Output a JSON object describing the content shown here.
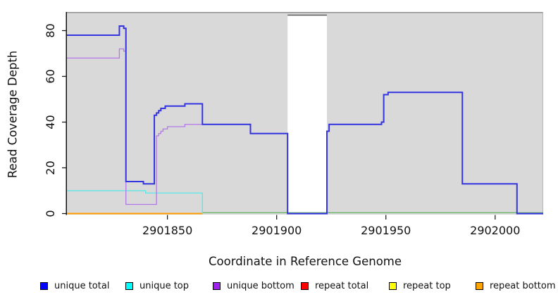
{
  "figure": {
    "xlabel": "Coordinate in Reference Genome",
    "ylabel": "Read Coverage Depth"
  },
  "chart_data": {
    "type": "line",
    "subtype": "step-after-coverage-plot",
    "title": "",
    "xlabel": "Coordinate in Reference Genome",
    "ylabel": "Read Coverage Depth",
    "xlim": [
      2901804,
      2902022
    ],
    "ylim": [
      0,
      88
    ],
    "xticks": [
      2901850,
      2901900,
      2901950,
      2902000
    ],
    "yticks": [
      0,
      20,
      40,
      60,
      80
    ],
    "panel_background": "#d9d9d9",
    "grid": "off",
    "gap_region": {
      "x_start": 2901905,
      "x_end": 2901923,
      "color": "#ffffff",
      "note": "white no-data band, line drops to 0"
    },
    "series": [
      {
        "name": "repeat total",
        "color": "#ff0000",
        "width": 2,
        "points": [
          [
            2901804,
            0
          ],
          [
            2901866,
            0
          ]
        ]
      },
      {
        "name": "repeat top",
        "color": "#ffff00",
        "width": 2,
        "points": [
          [
            2901804,
            0
          ],
          [
            2901866,
            0
          ]
        ]
      },
      {
        "name": "repeat bottom",
        "color": "#ff9d00",
        "width": 2,
        "points": [
          [
            2901804,
            0
          ],
          [
            2901866,
            0
          ]
        ]
      },
      {
        "name": "baseline",
        "color": "#6cb56c",
        "width": 1.3,
        "in_legend": false,
        "points": [
          [
            2901866,
            0
          ],
          [
            2902022,
            0
          ]
        ]
      },
      {
        "name": "unique top",
        "color": "#55e8e8",
        "width": 1.3,
        "points": [
          [
            2901804,
            10
          ],
          [
            2901840,
            9
          ],
          [
            2901866,
            0
          ]
        ]
      },
      {
        "name": "unique bottom",
        "color": "#b277e8",
        "width": 1.3,
        "points": [
          [
            2901804,
            68
          ],
          [
            2901828,
            72
          ],
          [
            2901830,
            71
          ],
          [
            2901831,
            4
          ],
          [
            2901845,
            34
          ],
          [
            2901846,
            35
          ],
          [
            2901847,
            36
          ],
          [
            2901848,
            37
          ],
          [
            2901850,
            38
          ],
          [
            2901858,
            39
          ],
          [
            2901888,
            35
          ],
          [
            2901905,
            0
          ],
          [
            2901923,
            36
          ],
          [
            2901924,
            39
          ],
          [
            2901948,
            40
          ],
          [
            2901949,
            52
          ],
          [
            2901951,
            53
          ],
          [
            2901985,
            13
          ],
          [
            2902010,
            0
          ],
          [
            2902022,
            0
          ]
        ]
      },
      {
        "name": "unique total",
        "color": "#3333e0",
        "width": 2,
        "points": [
          [
            2901804,
            78
          ],
          [
            2901828,
            82
          ],
          [
            2901830,
            81
          ],
          [
            2901831,
            14
          ],
          [
            2901839,
            13
          ],
          [
            2901844,
            43
          ],
          [
            2901845,
            44
          ],
          [
            2901846,
            45
          ],
          [
            2901847,
            46
          ],
          [
            2901849,
            47
          ],
          [
            2901858,
            48
          ],
          [
            2901866,
            39
          ],
          [
            2901888,
            35
          ],
          [
            2901905,
            0
          ],
          [
            2901923,
            36
          ],
          [
            2901924,
            39
          ],
          [
            2901948,
            40
          ],
          [
            2901949,
            52
          ],
          [
            2901951,
            53
          ],
          [
            2901985,
            13
          ],
          [
            2902010,
            0
          ],
          [
            2902022,
            0
          ]
        ]
      }
    ],
    "legend": {
      "position": "bottom",
      "items": [
        {
          "label": "unique total",
          "color": "#0000ff"
        },
        {
          "label": "unique top",
          "color": "#00ffff"
        },
        {
          "label": "unique bottom",
          "color": "#a020f0"
        },
        {
          "label": "repeat total",
          "color": "#ff0000"
        },
        {
          "label": "repeat top",
          "color": "#ffff00"
        },
        {
          "label": "repeat bottom",
          "color": "#ffa500"
        }
      ]
    }
  }
}
